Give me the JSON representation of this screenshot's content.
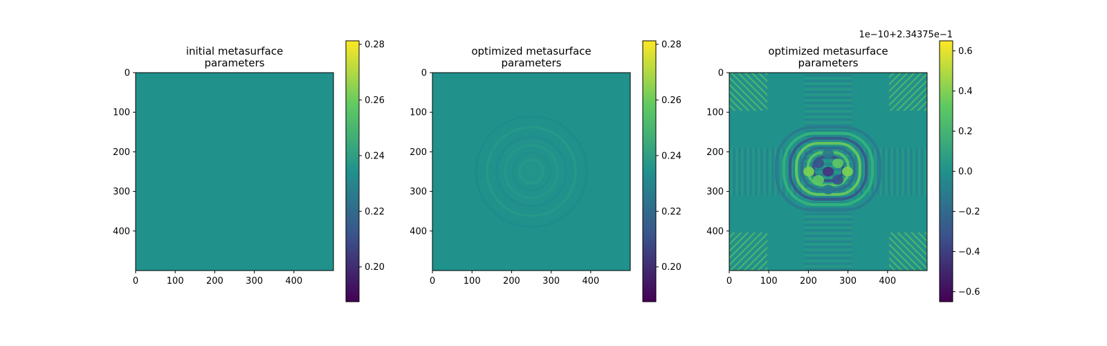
{
  "chart_data": [
    {
      "type": "heatmap",
      "title": "initial metasurface\nparameters",
      "colormap": "viridis",
      "x_ticks": [
        0,
        100,
        200,
        300,
        400
      ],
      "y_ticks": [
        0,
        100,
        200,
        300,
        400
      ],
      "extent": [
        0,
        500
      ],
      "value_range": [
        0.1875,
        0.28125
      ],
      "uniform_value": 0.234375,
      "colorbar_ticks": [
        "0.20",
        "0.22",
        "0.24",
        "0.26",
        "0.28"
      ],
      "colorbar_tick_values": [
        0.2,
        0.22,
        0.24,
        0.26,
        0.28
      ],
      "colorbar_offset": ""
    },
    {
      "type": "heatmap",
      "title": "optimized metasurface\nparameters",
      "colormap": "viridis",
      "x_ticks": [
        0,
        100,
        200,
        300,
        400
      ],
      "y_ticks": [
        0,
        100,
        200,
        300,
        400
      ],
      "extent": [
        0,
        500
      ],
      "value_range": [
        0.1875,
        0.28125
      ],
      "uniform_value": 0.234375,
      "pattern": "faint concentric ripples centered near (250, 250)",
      "colorbar_ticks": [
        "0.20",
        "0.22",
        "0.24",
        "0.26",
        "0.28"
      ],
      "colorbar_tick_values": [
        0.2,
        0.22,
        0.24,
        0.26,
        0.28
      ],
      "colorbar_offset": ""
    },
    {
      "type": "heatmap",
      "title": "optimized metasurface\nparameters",
      "colormap": "viridis",
      "x_ticks": [
        0,
        100,
        200,
        300,
        400
      ],
      "y_ticks": [
        0,
        100,
        200,
        300,
        400
      ],
      "extent": [
        0,
        500
      ],
      "value_range": [
        -0.65,
        0.65
      ],
      "pattern": "strong rippled structure centered near (250, 250) with diagonal streaks near the corners",
      "colorbar_ticks": [
        "0.6",
        "0.4",
        "0.2",
        "0.0",
        "−0.2",
        "−0.4",
        "−0.6"
      ],
      "colorbar_tick_values": [
        0.6,
        0.4,
        0.2,
        0.0,
        -0.2,
        -0.4,
        -0.6
      ],
      "colorbar_offset": "1e−10+2.34375e−1"
    }
  ],
  "colors": {
    "base": "#21918c",
    "viridis": [
      "#440154",
      "#3b528b",
      "#21918c",
      "#5ec962",
      "#fde725"
    ]
  }
}
